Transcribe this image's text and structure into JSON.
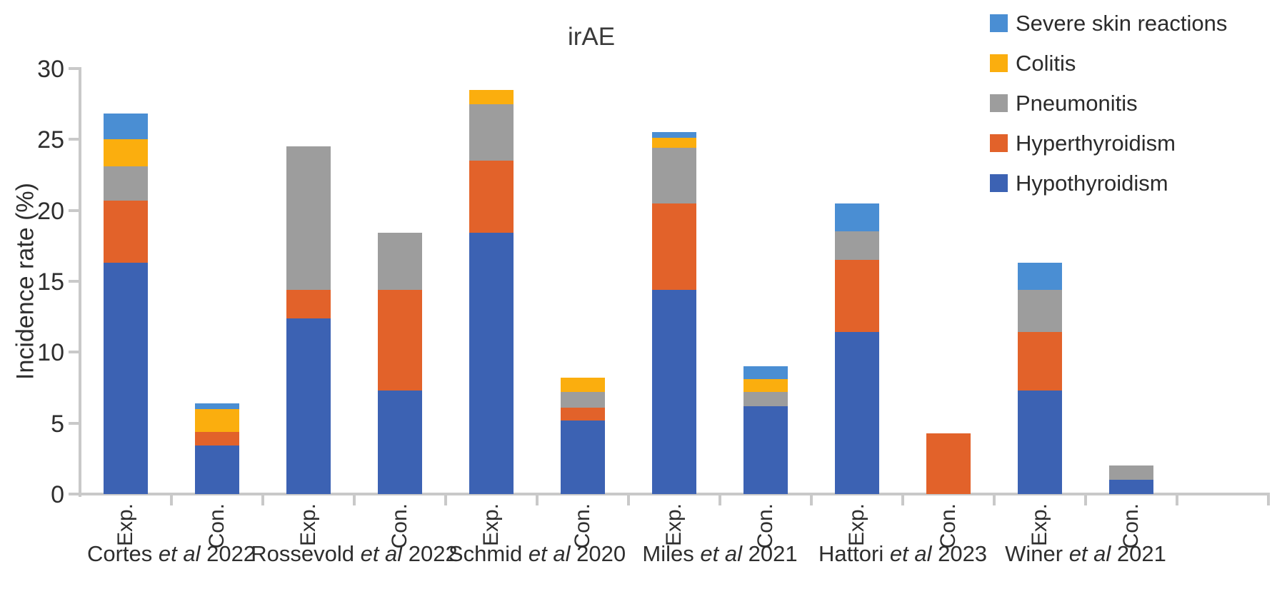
{
  "chart_data": {
    "type": "bar",
    "variant": "stacked-vertical",
    "title": "irAE",
    "xlabel": "",
    "ylabel": "Incidence rate (%)",
    "ylim": [
      0,
      30
    ],
    "y_ticks": [
      0,
      5,
      10,
      15,
      20,
      25,
      30
    ],
    "grid": false,
    "legend_position": "top-right",
    "legend": [
      {
        "label": "Severe skin reactions",
        "color": "#4a8ed3"
      },
      {
        "label": "Colitis",
        "color": "#fbae0e"
      },
      {
        "label": "Pneumonitis",
        "color": "#9d9d9d"
      },
      {
        "label": "Hyperthyroidism",
        "color": "#e2622a"
      },
      {
        "label": "Hypothyroidism",
        "color": "#3c62b3"
      }
    ],
    "stack_order_bottom_to_top": [
      "Hypothyroidism",
      "Hyperthyroidism",
      "Pneumonitis",
      "Colitis",
      "Severe skin reactions"
    ],
    "colors": {
      "Hypothyroidism": "#3c62b3",
      "Hyperthyroidism": "#e2622a",
      "Pneumonitis": "#9d9d9d",
      "Colitis": "#fbae0e",
      "Severe skin reactions": "#4a8ed3"
    },
    "axis_color": "#c9c9c9",
    "studies": [
      {
        "name": "Cortes",
        "etal": "et al",
        "year": "2022"
      },
      {
        "name": "Rossevold",
        "etal": "et al",
        "year": "2022"
      },
      {
        "name": "Schmid",
        "etal": "et al",
        "year": "2020"
      },
      {
        "name": "Miles",
        "etal": "et al",
        "year": "2021"
      },
      {
        "name": "Hattori",
        "etal": "et al",
        "year": "2023"
      },
      {
        "name": "Winer",
        "etal": "et al",
        "year": "2021"
      }
    ],
    "bars": [
      {
        "study": "Cortes et al 2022",
        "arm": "Exp.",
        "values": {
          "Hypothyroidism": 16.3,
          "Hyperthyroidism": 4.4,
          "Pneumonitis": 2.4,
          "Colitis": 1.9,
          "Severe skin reactions": 1.8
        }
      },
      {
        "study": "Cortes et al 2022",
        "arm": "Con.",
        "values": {
          "Hypothyroidism": 3.4,
          "Hyperthyroidism": 1.0,
          "Pneumonitis": 0,
          "Colitis": 1.6,
          "Severe skin reactions": 0.4
        }
      },
      {
        "study": "Rossevold et al 2022",
        "arm": "Exp.",
        "values": {
          "Hypothyroidism": 12.4,
          "Hyperthyroidism": 2.0,
          "Pneumonitis": 10.1,
          "Colitis": 0,
          "Severe skin reactions": 0
        }
      },
      {
        "study": "Rossevold et al 2022",
        "arm": "Con.",
        "values": {
          "Hypothyroidism": 7.3,
          "Hyperthyroidism": 7.1,
          "Pneumonitis": 4.0,
          "Colitis": 0,
          "Severe skin reactions": 0
        }
      },
      {
        "study": "Schmid et al 2020",
        "arm": "Exp.",
        "values": {
          "Hypothyroidism": 18.4,
          "Hyperthyroidism": 5.1,
          "Pneumonitis": 4.0,
          "Colitis": 1.0,
          "Severe skin reactions": 0
        }
      },
      {
        "study": "Schmid et al 2020",
        "arm": "Con.",
        "values": {
          "Hypothyroidism": 5.2,
          "Hyperthyroidism": 0.9,
          "Pneumonitis": 1.1,
          "Colitis": 1.0,
          "Severe skin reactions": 0
        }
      },
      {
        "study": "Miles et al 2021",
        "arm": "Exp.",
        "values": {
          "Hypothyroidism": 14.4,
          "Hyperthyroidism": 6.1,
          "Pneumonitis": 3.9,
          "Colitis": 0.7,
          "Severe skin reactions": 0.4
        }
      },
      {
        "study": "Miles et al 2021",
        "arm": "Con.",
        "values": {
          "Hypothyroidism": 6.2,
          "Hyperthyroidism": 0,
          "Pneumonitis": 1.0,
          "Colitis": 0.9,
          "Severe skin reactions": 0.9
        }
      },
      {
        "study": "Hattori et al 2023",
        "arm": "Exp.",
        "values": {
          "Hypothyroidism": 11.4,
          "Hyperthyroidism": 5.1,
          "Pneumonitis": 2.0,
          "Colitis": 0,
          "Severe skin reactions": 2.0
        }
      },
      {
        "study": "Hattori et al 2023",
        "arm": "Con.",
        "values": {
          "Hypothyroidism": 0,
          "Hyperthyroidism": 4.3,
          "Pneumonitis": 0,
          "Colitis": 0,
          "Severe skin reactions": 0
        }
      },
      {
        "study": "Winer et al 2021",
        "arm": "Exp.",
        "values": {
          "Hypothyroidism": 7.3,
          "Hyperthyroidism": 4.1,
          "Pneumonitis": 3.0,
          "Colitis": 0,
          "Severe skin reactions": 1.9
        }
      },
      {
        "study": "Winer et al 2021",
        "arm": "Con.",
        "values": {
          "Hypothyroidism": 1.0,
          "Hyperthyroidism": 0,
          "Pneumonitis": 1.0,
          "Colitis": 0,
          "Severe skin reactions": 0
        }
      }
    ]
  }
}
